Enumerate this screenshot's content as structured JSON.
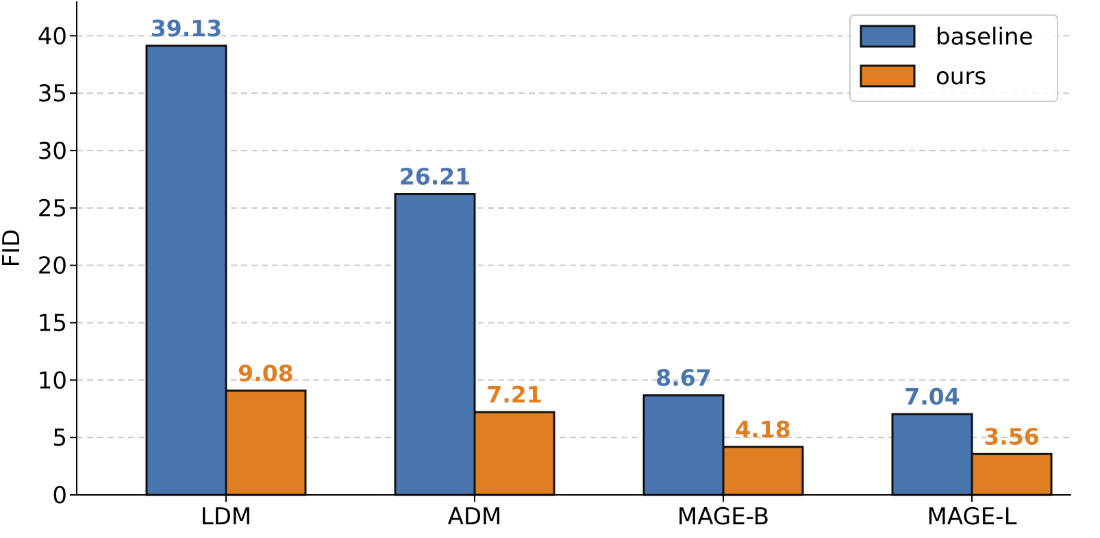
{
  "chart_data": {
    "type": "bar",
    "title": "",
    "xlabel": "",
    "ylabel": "FID",
    "ylim": [
      0,
      43
    ],
    "yticks": [
      0,
      5,
      10,
      15,
      20,
      25,
      30,
      35,
      40
    ],
    "grid": "y-dashed",
    "legend_position": "top-right",
    "categories": [
      "LDM",
      "ADM",
      "MAGE-B",
      "MAGE-L"
    ],
    "series": [
      {
        "name": "baseline",
        "color": "#4a76b0",
        "values": [
          39.13,
          26.21,
          8.67,
          7.04
        ]
      },
      {
        "name": "ours",
        "color": "#e07f22",
        "values": [
          9.08,
          7.21,
          4.18,
          3.56
        ]
      }
    ]
  }
}
